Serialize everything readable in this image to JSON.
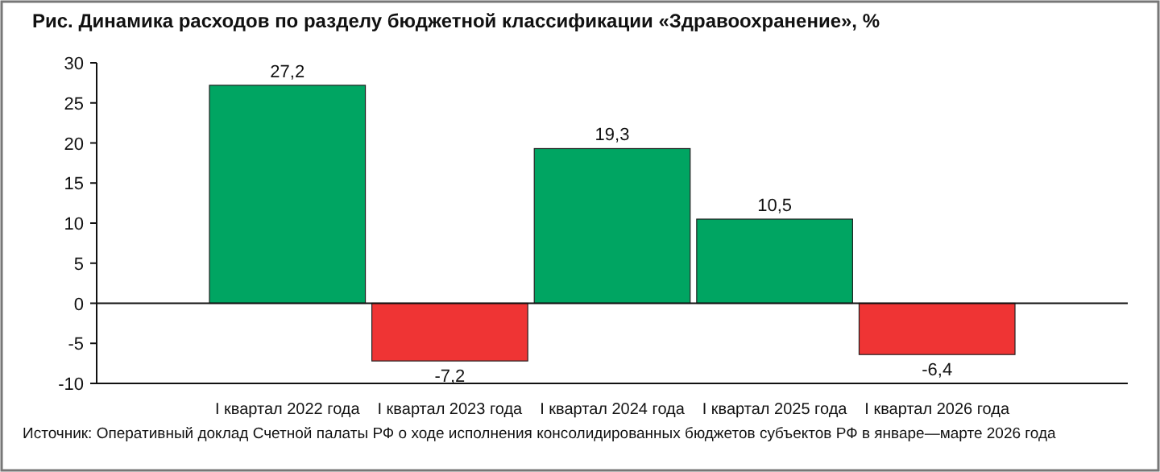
{
  "chart_data": {
    "type": "bar",
    "title": "Рис. Динамика расходов по разделу бюджетной классификации «Здравоохранение», %",
    "categories": [
      "I квартал 2022 года",
      "I квартал 2023 года",
      "I квартал 2024 года",
      "I квартал 2025 года",
      "I квартал 2026 года"
    ],
    "values": [
      27.2,
      -7.2,
      19.3,
      10.5,
      -6.4
    ],
    "colors": [
      "#00a562",
      "#ef3434",
      "#00a562",
      "#00a562",
      "#ef3434"
    ],
    "value_labels": [
      "27,2",
      "-7,2",
      "19,3",
      "10,5",
      "-6,4"
    ],
    "ylim": [
      -10,
      30
    ],
    "yticks": [
      -10,
      -5,
      0,
      5,
      10,
      15,
      20,
      25,
      30
    ],
    "annotations": [
      "Источник: Оперативный доклад Счетной палаты РФ о ходе исполнения консолидированных бюджетов субъектов РФ в январе—марте 2026 года"
    ]
  }
}
